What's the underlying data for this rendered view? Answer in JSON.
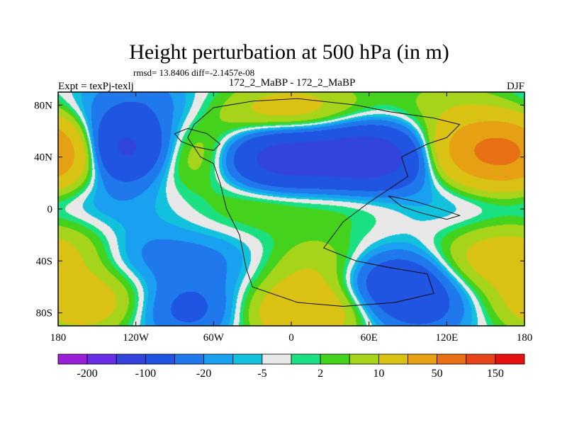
{
  "chart_data": {
    "type": "heatmap",
    "title": "Height perturbation at 500 hPa (in m)",
    "stats_line": "rmsd= 13.8406 diff=-2.1457e-08",
    "left_label": "Expt = texPj-texlj",
    "center_label": "172_2_MaBP - 172_2_MaBP",
    "right_label": "DJF",
    "x_axis": {
      "range": [
        -180,
        180
      ],
      "ticks": [
        -180,
        -120,
        -60,
        0,
        60,
        120,
        180
      ],
      "tick_labels": [
        "180",
        "120W",
        "60W",
        "0",
        "60E",
        "120E",
        "180"
      ]
    },
    "y_axis": {
      "range": [
        -90,
        90
      ],
      "ticks": [
        80,
        40,
        0,
        -40,
        -80
      ],
      "tick_labels": [
        "80N",
        "40N",
        "0",
        "40S",
        "80S"
      ]
    },
    "colorbar": {
      "levels": [
        -200,
        -100,
        -50,
        -20,
        -10,
        -5,
        -2,
        2,
        5,
        10,
        20,
        50,
        100,
        150,
        200
      ],
      "labels": [
        "-200",
        "-100",
        "-20",
        "-5",
        "2",
        "10",
        "50",
        "150"
      ],
      "label_after_box": [
        1,
        3,
        5,
        7,
        9,
        11,
        13,
        15
      ],
      "colors": [
        "#9a1fd6",
        "#6a2ee6",
        "#3344dd",
        "#1f55e0",
        "#1f78ec",
        "#1aa0f0",
        "#12c2dc",
        "#e8e8e8",
        "#1ae082",
        "#45d21c",
        "#a6d41a",
        "#d9c214",
        "#e6a014",
        "#e87014",
        "#e8441a",
        "#e61010"
      ]
    },
    "field_anomalies": [
      {
        "lon": -135,
        "lat": 45,
        "value": -90
      },
      {
        "lon": -175,
        "lat": 42,
        "value": 60
      },
      {
        "lon": -82,
        "lat": 42,
        "value": 35
      },
      {
        "lon": -15,
        "lat": 72,
        "value": 25
      },
      {
        "lon": 25,
        "lat": 75,
        "value": 15
      },
      {
        "lon": -10,
        "lat": 40,
        "value": -70
      },
      {
        "lon": 60,
        "lat": 40,
        "value": -80
      },
      {
        "lon": 155,
        "lat": 45,
        "value": 90
      },
      {
        "lon": -25,
        "lat": 5,
        "value": 12
      },
      {
        "lon": 45,
        "lat": 8,
        "value": 8
      },
      {
        "lon": -140,
        "lat": 5,
        "value": -8
      },
      {
        "lon": 120,
        "lat": 5,
        "value": -6
      },
      {
        "lon": -170,
        "lat": -30,
        "value": 15
      },
      {
        "lon": -120,
        "lat": -35,
        "value": -12
      },
      {
        "lon": -60,
        "lat": -40,
        "value": -10
      },
      {
        "lon": 25,
        "lat": -45,
        "value": 20
      },
      {
        "lon": 80,
        "lat": -55,
        "value": -40
      },
      {
        "lon": 150,
        "lat": -40,
        "value": 25
      },
      {
        "lon": -160,
        "lat": -72,
        "value": 35
      },
      {
        "lon": -80,
        "lat": -78,
        "value": -25
      },
      {
        "lon": 10,
        "lat": -80,
        "value": 45
      },
      {
        "lon": 100,
        "lat": -78,
        "value": -20
      },
      {
        "lon": -120,
        "lat": 82,
        "value": -15
      },
      {
        "lon": 120,
        "lat": 82,
        "value": 12
      }
    ],
    "region_outline": [
      [
        -30,
        83
      ],
      [
        5,
        85
      ],
      [
        50,
        80
      ],
      [
        75,
        75
      ],
      [
        110,
        70
      ],
      [
        130,
        65
      ],
      [
        120,
        55
      ],
      [
        105,
        50
      ],
      [
        85,
        40
      ],
      [
        90,
        25
      ],
      [
        75,
        15
      ],
      [
        60,
        5
      ],
      [
        40,
        -10
      ],
      [
        25,
        -30
      ],
      [
        50,
        -40
      ],
      [
        75,
        -45
      ],
      [
        105,
        -50
      ],
      [
        110,
        -65
      ],
      [
        80,
        -72
      ],
      [
        40,
        -75
      ],
      [
        5,
        -72
      ],
      [
        -30,
        -60
      ],
      [
        -35,
        -45
      ],
      [
        -40,
        -20
      ],
      [
        -50,
        0
      ],
      [
        -55,
        20
      ],
      [
        -60,
        35
      ],
      [
        -70,
        40
      ],
      [
        -80,
        55
      ],
      [
        -75,
        65
      ],
      [
        -60,
        78
      ]
    ],
    "inner_outline": [
      [
        -65,
        58
      ],
      [
        -55,
        50
      ],
      [
        -60,
        45
      ],
      [
        -75,
        48
      ],
      [
        -85,
        52
      ],
      [
        -90,
        58
      ],
      [
        -80,
        62
      ]
    ],
    "basin_outline": [
      [
        75,
        10
      ],
      [
        95,
        6
      ],
      [
        115,
        0
      ],
      [
        130,
        -5
      ],
      [
        120,
        -8
      ],
      [
        100,
        -3
      ],
      [
        85,
        2
      ]
    ]
  }
}
